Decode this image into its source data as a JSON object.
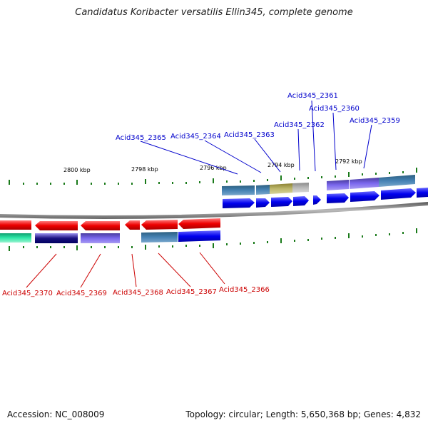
{
  "title": "Candidatus Koribacter versatilis Ellin345, complete genome",
  "footer": {
    "accession": "Accession: NC_008009",
    "topology": "Topology: circular; Length: 5,650,368 bp; Genes: 4,832"
  },
  "scale_labels": [
    "2800 kbp",
    "2798 kbp",
    "2796 kbp",
    "2794 kbp",
    "2792 kbp"
  ],
  "top_labels": [
    "Acid345_2365",
    "Acid345_2364",
    "Acid345_2363",
    "Acid345_2362",
    "Acid345_2361",
    "Acid345_2360",
    "Acid345_2359"
  ],
  "bottom_labels": [
    "Acid345_2370",
    "Acid345_2369",
    "Acid345_2368",
    "Acid345_2367",
    "Acid345_2366"
  ],
  "colors": {
    "top_label": "#0000cc",
    "bottom_label": "#cc0000",
    "forward_gene": "#0000ee",
    "reverse_gene": "#ee0000",
    "tick": "#1a7a1a",
    "backbone": "#888888"
  }
}
